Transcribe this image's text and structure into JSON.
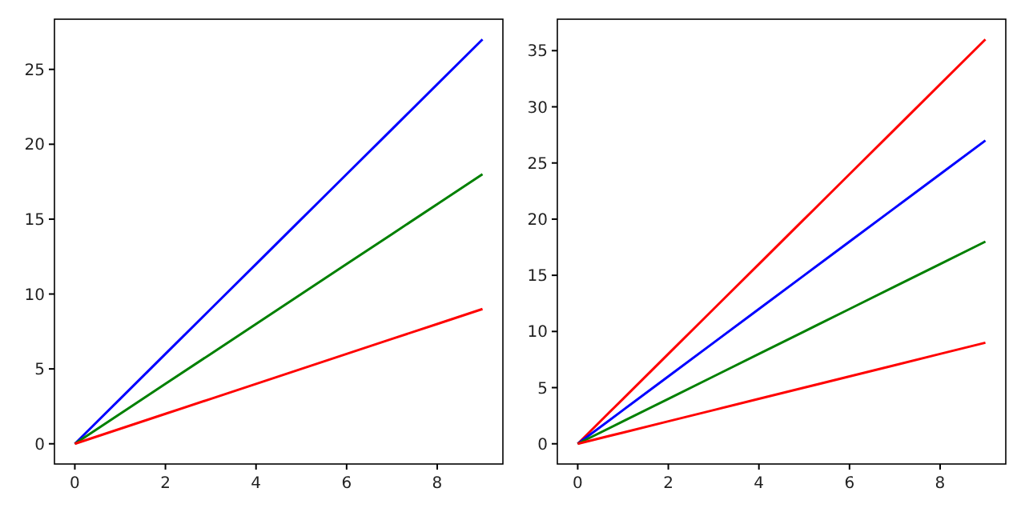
{
  "chart_data": [
    {
      "type": "line",
      "x": [
        0,
        1,
        2,
        3,
        4,
        5,
        6,
        7,
        8,
        9
      ],
      "xlim": [
        -0.45,
        9.45
      ],
      "xticks": [
        0,
        2,
        4,
        6,
        8
      ],
      "ylim": [
        -1.35,
        28.35
      ],
      "yticks": [
        0,
        5,
        10,
        15,
        20,
        25
      ],
      "series": [
        {
          "color": "#0000ff",
          "values": [
            0,
            3,
            6,
            9,
            12,
            15,
            18,
            21,
            24,
            27
          ]
        },
        {
          "color": "#008000",
          "values": [
            0,
            2,
            4,
            6,
            8,
            10,
            12,
            14,
            16,
            18
          ]
        },
        {
          "color": "#ff0000",
          "values": [
            0,
            1,
            2,
            3,
            4,
            5,
            6,
            7,
            8,
            9
          ]
        }
      ]
    },
    {
      "type": "line",
      "x": [
        0,
        1,
        2,
        3,
        4,
        5,
        6,
        7,
        8,
        9
      ],
      "xlim": [
        -0.45,
        9.45
      ],
      "xticks": [
        0,
        2,
        4,
        6,
        8
      ],
      "ylim": [
        -1.8,
        37.8
      ],
      "yticks": [
        0,
        5,
        10,
        15,
        20,
        25,
        30,
        35
      ],
      "series": [
        {
          "color": "#ff0000",
          "values": [
            0,
            4,
            8,
            12,
            16,
            20,
            24,
            28,
            32,
            36
          ]
        },
        {
          "color": "#0000ff",
          "values": [
            0,
            3,
            6,
            9,
            12,
            15,
            18,
            21,
            24,
            27
          ]
        },
        {
          "color": "#008000",
          "values": [
            0,
            2,
            4,
            6,
            8,
            10,
            12,
            14,
            16,
            18
          ]
        },
        {
          "color": "#ff0000",
          "values": [
            0,
            1,
            2,
            3,
            4,
            5,
            6,
            7,
            8,
            9
          ]
        }
      ]
    }
  ]
}
